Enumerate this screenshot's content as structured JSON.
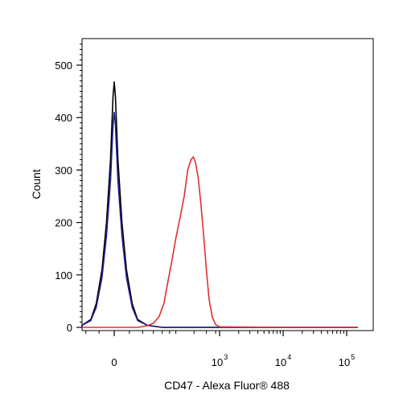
{
  "chart_data": {
    "type": "line",
    "title": "",
    "xlabel": "CD47 - Alexa Fluor® 488",
    "ylabel": "Count",
    "x_scale": "biexponential",
    "xlim": [
      -300,
      150000
    ],
    "ylim": [
      0,
      550
    ],
    "grid": false,
    "y_ticks": [
      0,
      100,
      200,
      300,
      400,
      500
    ],
    "x_ticks": [
      {
        "value": 0,
        "label": "0",
        "sup": ""
      },
      {
        "value": 1000,
        "label": "10",
        "sup": "3"
      },
      {
        "value": 10000,
        "label": "10",
        "sup": "4"
      },
      {
        "value": 100000,
        "label": "10",
        "sup": "5"
      }
    ],
    "series": [
      {
        "color": "#000000",
        "x": [
          -300,
          -120,
          -80,
          -60,
          -40,
          -25,
          -12,
          -4,
          0,
          4,
          12,
          25,
          40,
          60,
          80,
          120,
          200,
          400,
          1000,
          10000,
          150000
        ],
        "y": [
          0,
          4,
          15,
          45,
          110,
          200,
          320,
          440,
          468,
          440,
          320,
          200,
          110,
          45,
          15,
          4,
          0,
          0,
          0,
          0,
          0
        ]
      },
      {
        "color": "#1f1f8f",
        "x": [
          -300,
          -120,
          -80,
          -60,
          -40,
          -25,
          -12,
          -4,
          0,
          4,
          12,
          25,
          40,
          60,
          80,
          120,
          200,
          400,
          1000,
          10000,
          150000
        ],
        "y": [
          0,
          4,
          13,
          38,
          95,
          175,
          280,
          385,
          410,
          385,
          280,
          175,
          95,
          38,
          13,
          4,
          0,
          0,
          0,
          0,
          0
        ]
      },
      {
        "color": "#e03030",
        "x": [
          -300,
          0,
          80,
          120,
          150,
          180,
          210,
          240,
          270,
          300,
          340,
          380,
          420,
          460,
          490,
          520,
          560,
          600,
          650,
          700,
          750,
          820,
          900,
          1000,
          10000,
          150000
        ],
        "y": [
          0,
          0,
          0,
          3,
          8,
          20,
          45,
          90,
          130,
          170,
          210,
          250,
          300,
          320,
          325,
          315,
          285,
          240,
          175,
          110,
          55,
          20,
          5,
          1,
          0,
          0
        ]
      }
    ]
  }
}
